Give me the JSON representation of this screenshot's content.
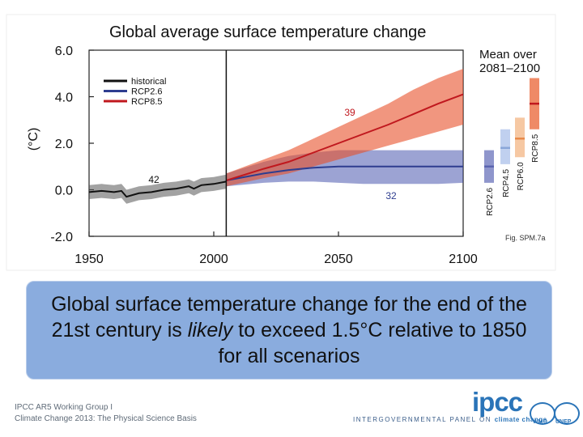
{
  "chart_data": {
    "type": "line",
    "title": "Global average surface temperature change",
    "ylabel": "(°C)",
    "xlabel": "",
    "xlim": [
      1950,
      2100
    ],
    "ylim": [
      -2.0,
      6.0
    ],
    "yticks": [
      "6.0",
      "4.0",
      "2.0",
      "0.0",
      "-2.0"
    ],
    "ytick_values": [
      6.0,
      4.0,
      2.0,
      0.0,
      -2.0
    ],
    "xticks": [
      "1950",
      "2000",
      "2050",
      "2100"
    ],
    "xtick_values": [
      1950,
      2000,
      2050,
      2100
    ],
    "divider_year": 2005,
    "legend": [
      {
        "name": "historical",
        "color": "#111111"
      },
      {
        "name": "RCP2.6",
        "color": "#2e3d8f"
      },
      {
        "name": "RCP8.5",
        "color": "#c0181e"
      }
    ],
    "series": [
      {
        "name": "historical",
        "color": "#111111",
        "x": [
          1950,
          1955,
          1960,
          1963,
          1965,
          1970,
          1975,
          1980,
          1985,
          1990,
          1992,
          1995,
          2000,
          2005
        ],
        "values": [
          -0.1,
          -0.05,
          -0.1,
          -0.05,
          -0.3,
          -0.15,
          -0.1,
          0.0,
          0.05,
          0.15,
          0.05,
          0.2,
          0.25,
          0.35
        ],
        "band": 0.3,
        "model_count": "42"
      },
      {
        "name": "RCP2.6",
        "color": "#2e3d8f",
        "x": [
          2005,
          2020,
          2030,
          2040,
          2050,
          2060,
          2070,
          2080,
          2090,
          2100
        ],
        "values": [
          0.4,
          0.7,
          0.85,
          0.95,
          1.0,
          1.0,
          1.0,
          1.0,
          1.0,
          1.0
        ],
        "low": [
          0.15,
          0.3,
          0.35,
          0.35,
          0.3,
          0.25,
          0.25,
          0.25,
          0.25,
          0.3
        ],
        "high": [
          0.7,
          1.2,
          1.45,
          1.6,
          1.7,
          1.7,
          1.7,
          1.7,
          1.7,
          1.7
        ],
        "model_count": "32"
      },
      {
        "name": "RCP8.5",
        "color": "#c0181e",
        "x": [
          2005,
          2020,
          2030,
          2040,
          2050,
          2060,
          2070,
          2080,
          2090,
          2100
        ],
        "values": [
          0.4,
          0.9,
          1.2,
          1.6,
          2.0,
          2.4,
          2.8,
          3.25,
          3.7,
          4.1
        ],
        "low": [
          0.15,
          0.5,
          0.7,
          1.0,
          1.3,
          1.6,
          1.9,
          2.2,
          2.5,
          2.8
        ],
        "high": [
          0.7,
          1.3,
          1.7,
          2.2,
          2.7,
          3.2,
          3.7,
          4.3,
          4.8,
          5.2
        ],
        "model_count": "39"
      }
    ],
    "side_panel": {
      "title_line1": "Mean over",
      "title_line2": "2081–2100",
      "bars": [
        {
          "name": "RCP2.6",
          "mean": 1.0,
          "low": 0.3,
          "high": 1.7,
          "color": "#5b64b0",
          "fill": "#8f96cc"
        },
        {
          "name": "RCP4.5",
          "mean": 1.8,
          "low": 1.1,
          "high": 2.6,
          "color": "#8aa6d8",
          "fill": "#c0d0ef"
        },
        {
          "name": "RCP6.0",
          "mean": 2.2,
          "low": 1.4,
          "high": 3.1,
          "color": "#e88a4a",
          "fill": "#f6c8a3"
        },
        {
          "name": "RCP8.5",
          "mean": 3.7,
          "low": 2.6,
          "high": 4.8,
          "color": "#c0181e",
          "fill": "#ef8a66"
        }
      ]
    },
    "figure_ref": "Fig. SPM.7a"
  },
  "banner": {
    "before": "Global surface temperature change for the end of the 21st century is ",
    "emph": "likely",
    "after": " to exceed 1.5°C relative to 1850 for all scenarios"
  },
  "footer": {
    "line1": "IPCC AR5 Working Group I",
    "line2": "Climate Change 2013: The Physical Science Basis",
    "logo": "ipcc",
    "panel_prefix": "INTERGOVERNMENTAL PANEL ON ",
    "panel_suffix": "climate change",
    "org1": "WMO",
    "org2": "UNEP"
  }
}
